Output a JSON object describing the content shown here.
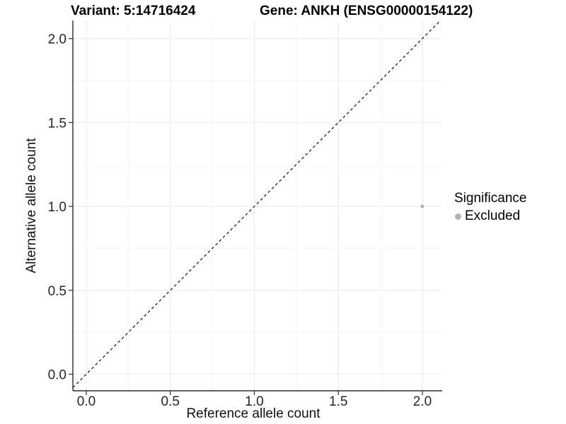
{
  "chart_data": {
    "type": "scatter",
    "titles": {
      "variant": "Variant: 5:14716424",
      "gene": "Gene: ANKH (ENSG00000154122)"
    },
    "xlabel": "Reference allele count",
    "ylabel": "Alternative allele count",
    "xlim": [
      -0.08,
      2.118
    ],
    "ylim": [
      -0.099,
      2.108
    ],
    "x_ticks": [
      0.0,
      0.5,
      1.0,
      1.5,
      2.0
    ],
    "y_ticks": [
      0.0,
      0.5,
      1.0,
      1.5,
      2.0
    ],
    "x_minor_ticks": [
      0.25,
      0.75,
      1.25,
      1.75
    ],
    "y_minor_ticks": [
      0.25,
      0.75,
      1.25,
      1.75
    ],
    "tick_decimals": 1,
    "grid": "major+minor",
    "legend_position": "right",
    "series": [
      {
        "name": "Excluded",
        "color": "#b2b2b2",
        "points": [
          {
            "x": 2.0,
            "y": 1.0
          }
        ]
      }
    ],
    "reference_line": {
      "equation": "y = x",
      "style": "dashed",
      "color": "#111111",
      "start": -0.08,
      "end": 2.108
    },
    "legend": {
      "title": "Significance",
      "entries": [
        {
          "label": "Excluded",
          "color": "#b2b2b2"
        }
      ]
    },
    "style": {
      "background": "#ffffff",
      "grid_major_color": "#ebebeb",
      "grid_minor_color": "#f5f5f5",
      "axis_color": "#2b2b2b",
      "tick_label_color": "#262626",
      "point_radius": 2.5,
      "legend_dot_radius": 4.5
    }
  }
}
